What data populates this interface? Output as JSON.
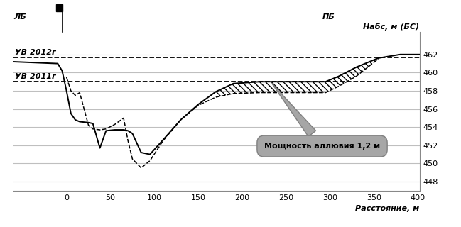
{
  "chart_data": {
    "type": "line",
    "x_label": "Расстояние, м",
    "y_label": "Hабс, м (БС)",
    "bank_labels": [
      "ЛБ",
      "ПБ"
    ],
    "x": [
      -60,
      -10,
      -5,
      0,
      5,
      10,
      15,
      25,
      30,
      38,
      45,
      55,
      65,
      70,
      75,
      85,
      95,
      110,
      130,
      150,
      170,
      190,
      220,
      250,
      295,
      310,
      330,
      355,
      380,
      402
    ],
    "series": [
      {
        "color": "#000000",
        "line_style": "solid",
        "values": [
          461.2,
          461.0,
          460.2,
          458.0,
          455.5,
          454.8,
          454.6,
          454.5,
          454.4,
          451.7,
          453.6,
          453.7,
          453.7,
          453.6,
          453.3,
          451.2,
          451.0,
          452.6,
          454.8,
          456.5,
          457.9,
          458.8,
          459.0,
          459.0,
          459.0,
          459.6,
          460.6,
          461.6,
          462.0,
          462.0
        ]
      },
      {
        "color": "#000000",
        "line_style": "dashed",
        "values": [
          null,
          null,
          null,
          459.5,
          458.0,
          457.5,
          457.8,
          454.2,
          453.8,
          453.7,
          453.8,
          454.3,
          455.0,
          452.5,
          450.5,
          449.5,
          450.3,
          452.5,
          454.8,
          456.4,
          457.3,
          457.7,
          457.8,
          457.8,
          457.8,
          458.5,
          459.6,
          461.5,
          null,
          null
        ]
      }
    ],
    "water_levels": [
      {
        "label": "УВ 2012г",
        "value": 461.7
      },
      {
        "label": "УВ 2011г",
        "value": 459.0
      }
    ],
    "annotation": {
      "text": "Мощность аллювия 1,2 м",
      "x": [
        170,
        355
      ]
    },
    "xlim": [
      -60,
      402
    ],
    "ylim": [
      447,
      464.5
    ],
    "xticks": [
      0,
      50,
      100,
      150,
      200,
      250,
      300,
      350,
      400
    ],
    "yticks": [
      448,
      450,
      452,
      454,
      456,
      458,
      460,
      462
    ],
    "grid": true
  }
}
